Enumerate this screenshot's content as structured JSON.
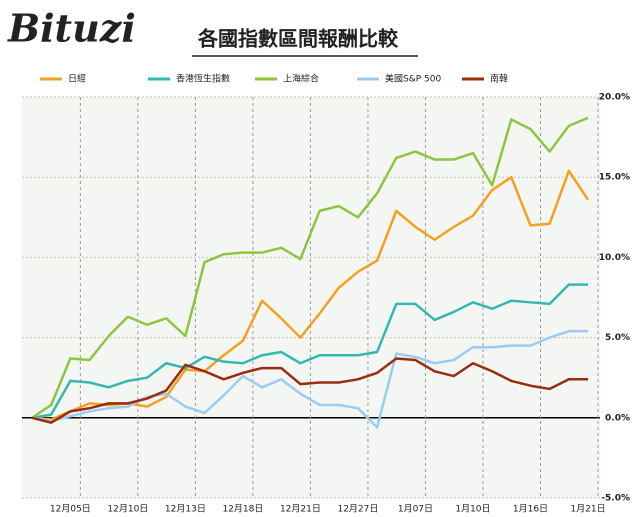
{
  "logo": "Bituzi",
  "chart_data": {
    "type": "line",
    "title": "各國指數區間報酬比較",
    "categories": [
      null,
      null,
      "12月05日",
      null,
      null,
      "12月10日",
      null,
      null,
      "12月13日",
      null,
      null,
      "12月18日",
      null,
      null,
      "12月21日",
      null,
      null,
      "12月27日",
      null,
      null,
      "1月07日",
      null,
      null,
      "1月10日",
      null,
      null,
      "1月16日",
      null,
      null,
      "1月21日"
    ],
    "series": [
      {
        "name": "日經",
        "color": "#f5a020",
        "values": [
          0,
          -0.1,
          0.4,
          0.9,
          0.8,
          0.9,
          0.7,
          1.3,
          3.0,
          2.9,
          3.9,
          4.8,
          7.3,
          6.2,
          5.0,
          6.5,
          8.1,
          9.1,
          9.8,
          12.9,
          11.9,
          11.1,
          11.9,
          12.6,
          14.2,
          15.0,
          12.0,
          12.1,
          15.4,
          13.6
        ]
      },
      {
        "name": "香港恆生指數",
        "color": "#33b8b0",
        "values": [
          0,
          0.2,
          2.3,
          2.2,
          1.9,
          2.3,
          2.5,
          3.4,
          3.1,
          3.8,
          3.5,
          3.4,
          3.9,
          4.1,
          3.4,
          3.9,
          3.9,
          3.9,
          4.1,
          7.1,
          7.1,
          6.1,
          6.6,
          7.2,
          6.8,
          7.3,
          7.2,
          7.1,
          8.3,
          8.3
        ]
      },
      {
        "name": "上海綜合",
        "color": "#8cc63f",
        "values": [
          0,
          0.8,
          3.7,
          3.6,
          5.1,
          6.3,
          5.8,
          6.2,
          5.1,
          9.7,
          10.2,
          10.3,
          10.3,
          10.6,
          9.9,
          12.9,
          13.2,
          12.5,
          14.0,
          16.2,
          16.6,
          16.1,
          16.1,
          16.5,
          14.5,
          18.6,
          18.0,
          16.6,
          18.2,
          18.7
        ]
      },
      {
        "name": "美國S&P 500",
        "color": "#9ecbf0",
        "values": [
          0,
          -0.2,
          0.1,
          0.4,
          0.6,
          0.7,
          1.3,
          1.5,
          0.7,
          0.3,
          1.4,
          2.6,
          1.9,
          2.4,
          1.5,
          0.8,
          0.8,
          0.6,
          -0.6,
          4.0,
          3.8,
          3.4,
          3.6,
          4.4,
          4.4,
          4.5,
          4.5,
          5.0,
          5.4,
          5.4
        ]
      },
      {
        "name": "南韓",
        "color": "#9b2d0f",
        "values": [
          0,
          -0.3,
          0.4,
          0.6,
          0.9,
          0.9,
          1.2,
          1.7,
          3.3,
          2.9,
          2.4,
          2.8,
          3.1,
          3.1,
          2.1,
          2.2,
          2.2,
          2.4,
          2.8,
          3.7,
          3.6,
          2.9,
          2.6,
          3.4,
          2.9,
          2.3,
          2.0,
          1.8,
          2.4,
          2.4
        ]
      }
    ],
    "ylim": [
      -5,
      20
    ],
    "yticks": [
      {
        "value": 20,
        "label": "20.0%"
      },
      {
        "value": 15,
        "label": "15.0%"
      },
      {
        "value": 10,
        "label": "10.0%"
      },
      {
        "value": 5,
        "label": "5.0%"
      },
      {
        "value": 0,
        "label": "0.0%"
      },
      {
        "value": -5,
        "label": "-5.0%"
      }
    ],
    "grid": true
  }
}
